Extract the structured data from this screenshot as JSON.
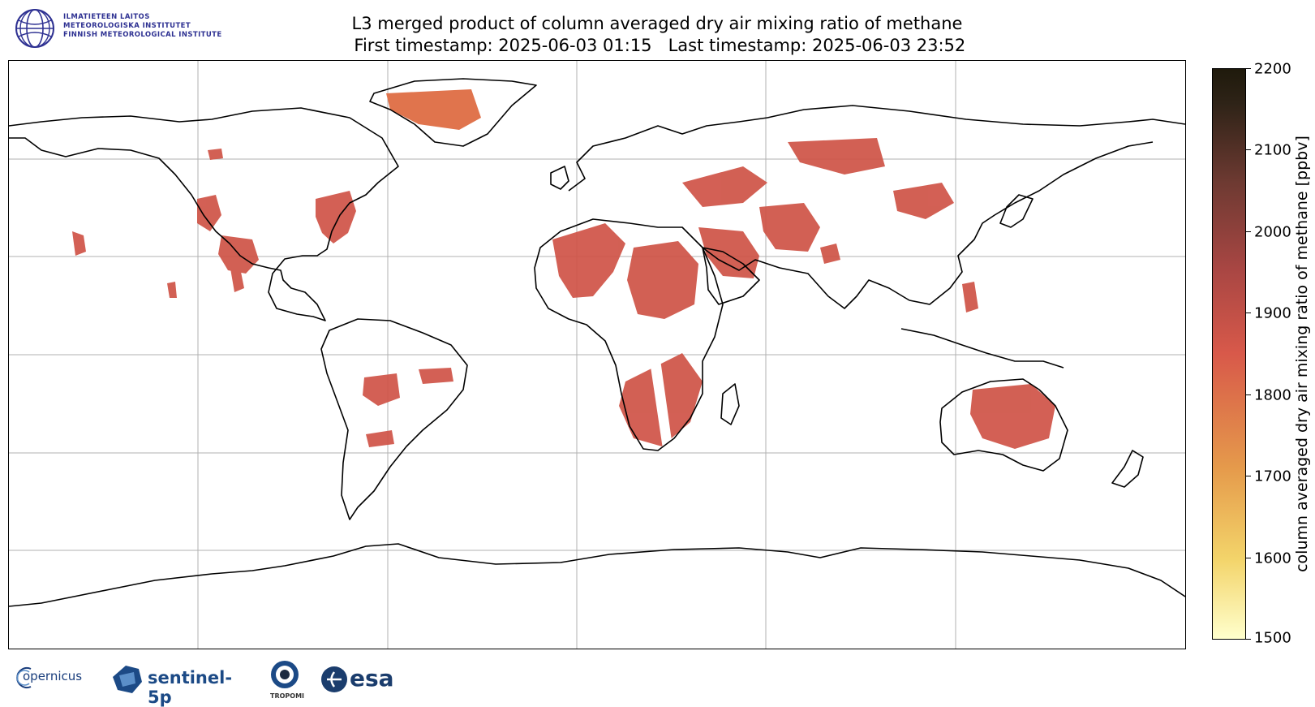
{
  "header": {
    "institute_lines": [
      "ILMATIETEEN LAITOS",
      "METEOROLOGISKA INSTITUTET",
      "FINNISH METEOROLOGICAL INSTITUTE"
    ],
    "title_line_1": "L3 merged product of column averaged dry air mixing ratio of methane",
    "title_line_2": " First timestamp: 2025-06-03 01:15   Last timestamp: 2025-06-03 23:52"
  },
  "colorbar": {
    "label": "column averaged dry air mixing ratio of methane [ppbv]",
    "min": 1500,
    "max": 2200,
    "ticks": [
      "2200",
      "2100",
      "2000",
      "1900",
      "1800",
      "1700",
      "1600",
      "1500"
    ],
    "colors": [
      "#ffffcc",
      "#f3d46a",
      "#e59a4b",
      "#d8594a",
      "#a84643",
      "#6e3a32",
      "#1f1a0c"
    ]
  },
  "map": {
    "projection": "plate-carree",
    "gridlines": true,
    "data_color": "#cf5346",
    "greenland_color": "#e0744d"
  },
  "footer": {
    "copernicus": "opernicus",
    "sentinel": "sentinel-5p",
    "tropomi": "TROPOMI",
    "esa": "esa"
  }
}
